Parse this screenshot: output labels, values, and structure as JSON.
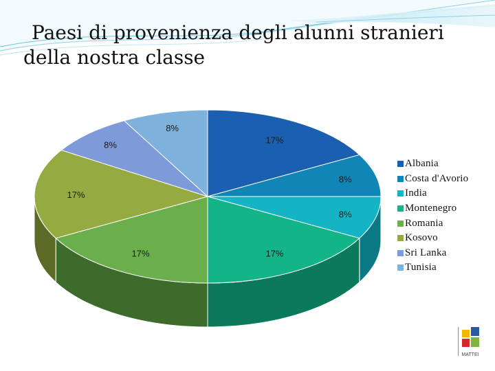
{
  "slide": {
    "title_line1": "Paesi di provenienza degli alunni stranieri",
    "title_line2": "della nostra classe"
  },
  "logo": {
    "text": "MATTEI",
    "tile_colors": [
      "#f2b700",
      "#2c5aa0",
      "#d62828",
      "#7cb342"
    ]
  },
  "chart_data": {
    "type": "pie",
    "style": "3d",
    "legend_position": "right",
    "categories": [
      "Albania",
      "Costa d'Avorio",
      "India",
      "Montenegro",
      "Romania",
      "Kosovo",
      "Sri Lanka",
      "Tunisia"
    ],
    "values": [
      17,
      8,
      8,
      17,
      17,
      17,
      8,
      8
    ],
    "labels": [
      "17%",
      "8%",
      "8%",
      "17%",
      "17%",
      "17%",
      "8%",
      "8%"
    ],
    "colors": [
      "#1b5fb0",
      "#0f86b6",
      "#14b4c4",
      "#12b488",
      "#6aaf4c",
      "#95aa40",
      "#7f9ad8",
      "#7fb1dd"
    ],
    "side_colors": [
      "#123f78",
      "#0a5c7c",
      "#0c7a86",
      "#0b7a5c",
      "#3d6b2c",
      "#5c6a26",
      "#4a5f8a",
      "#4d7294"
    ]
  }
}
